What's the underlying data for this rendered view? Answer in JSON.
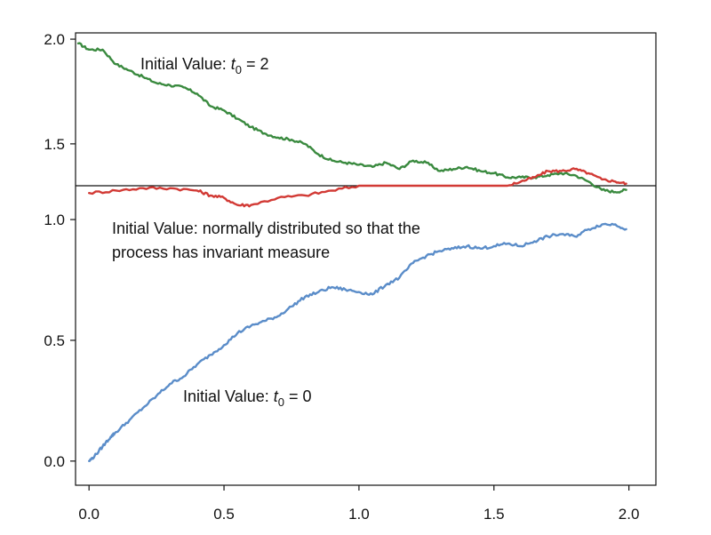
{
  "chart_data": {
    "type": "line",
    "title": "",
    "xlabel": "",
    "ylabel": "",
    "layout": "broken-y-axis",
    "grid": false,
    "legend": "none",
    "xlim": [
      -0.05,
      2.1
    ],
    "x_ticks": [
      0.0,
      0.5,
      1.0,
      1.5,
      2.0
    ],
    "x_tick_labels": [
      "0.0",
      "0.5",
      "1.0",
      "1.5",
      "2.0"
    ],
    "upper_panel": {
      "ylim": [
        1.3,
        2.03
      ],
      "y_ticks": [
        1.5,
        2.0
      ],
      "y_tick_labels": [
        "1.5",
        "2.0"
      ]
    },
    "lower_panel": {
      "ylim": [
        -0.1,
        1.14
      ],
      "y_ticks": [
        0.0,
        0.5,
        1.0
      ],
      "y_tick_labels": [
        "0.0",
        "0.5",
        "1.0"
      ]
    },
    "annotations": {
      "green": {
        "prefix": "Initial Value: ",
        "var": "t",
        "sub": "0",
        "suffix": " = 2"
      },
      "red_line1": "Initial Value: normally distributed so that the",
      "red_line2": "process has invariant measure",
      "blue": {
        "prefix": "Initial Value: ",
        "var": "t",
        "sub": "0",
        "suffix": " = 0"
      }
    },
    "series": [
      {
        "color": "#3a8a3f",
        "panel": "upper",
        "x": [
          -0.04,
          0.0,
          0.05,
          0.1,
          0.15,
          0.2,
          0.25,
          0.3,
          0.35,
          0.4,
          0.45,
          0.5,
          0.55,
          0.6,
          0.65,
          0.7,
          0.75,
          0.8,
          0.85,
          0.9,
          0.95,
          1.0,
          1.05,
          1.1,
          1.15,
          1.2,
          1.25,
          1.3,
          1.35,
          1.4,
          1.45,
          1.5,
          1.55,
          1.6,
          1.65,
          1.7,
          1.75,
          1.8,
          1.85,
          1.9,
          1.95,
          1.99
        ],
        "y": [
          1.98,
          1.95,
          1.95,
          1.88,
          1.85,
          1.82,
          1.79,
          1.78,
          1.77,
          1.74,
          1.68,
          1.66,
          1.62,
          1.58,
          1.55,
          1.53,
          1.52,
          1.5,
          1.45,
          1.42,
          1.41,
          1.4,
          1.39,
          1.41,
          1.38,
          1.42,
          1.41,
          1.37,
          1.38,
          1.39,
          1.37,
          1.36,
          1.34,
          1.34,
          1.34,
          1.35,
          1.36,
          1.35,
          1.32,
          1.28,
          1.27,
          1.28
        ]
      },
      {
        "color": "#d23a35",
        "panel": "broken",
        "x": [
          0.0,
          0.1,
          0.2,
          0.3,
          0.4,
          0.45,
          0.5,
          0.55,
          0.6,
          0.7,
          0.8,
          0.9,
          1.0,
          1.05,
          1.1,
          1.15,
          1.2,
          1.25,
          1.3,
          1.35,
          1.4,
          1.45,
          1.5,
          1.55,
          1.6,
          1.65,
          1.7,
          1.75,
          1.8,
          1.85,
          1.9,
          1.95,
          1.99
        ],
        "y": [
          1.11,
          1.12,
          1.13,
          1.13,
          1.12,
          1.1,
          1.09,
          1.06,
          1.06,
          1.09,
          1.1,
          1.12,
          1.14,
          1.16,
          1.18,
          1.21,
          1.22,
          1.22,
          1.22,
          1.24,
          1.27,
          1.28,
          1.27,
          1.3,
          1.32,
          1.34,
          1.37,
          1.37,
          1.38,
          1.36,
          1.33,
          1.32,
          1.31
        ]
      },
      {
        "color": "#5b8dc9",
        "panel": "lower",
        "x": [
          0.0,
          0.02,
          0.05,
          0.08,
          0.1,
          0.15,
          0.2,
          0.25,
          0.3,
          0.35,
          0.4,
          0.45,
          0.5,
          0.55,
          0.6,
          0.65,
          0.7,
          0.75,
          0.8,
          0.85,
          0.9,
          0.95,
          1.0,
          1.05,
          1.1,
          1.15,
          1.2,
          1.25,
          1.3,
          1.35,
          1.4,
          1.45,
          1.5,
          1.55,
          1.6,
          1.65,
          1.7,
          1.75,
          1.8,
          1.85,
          1.9,
          1.95,
          1.99
        ],
        "y": [
          0.0,
          0.02,
          0.06,
          0.1,
          0.12,
          0.17,
          0.22,
          0.27,
          0.32,
          0.35,
          0.4,
          0.44,
          0.48,
          0.53,
          0.56,
          0.58,
          0.6,
          0.64,
          0.68,
          0.7,
          0.72,
          0.71,
          0.7,
          0.69,
          0.73,
          0.76,
          0.82,
          0.85,
          0.87,
          0.88,
          0.89,
          0.88,
          0.89,
          0.9,
          0.89,
          0.91,
          0.93,
          0.94,
          0.93,
          0.96,
          0.98,
          0.98,
          0.96
        ]
      }
    ]
  }
}
